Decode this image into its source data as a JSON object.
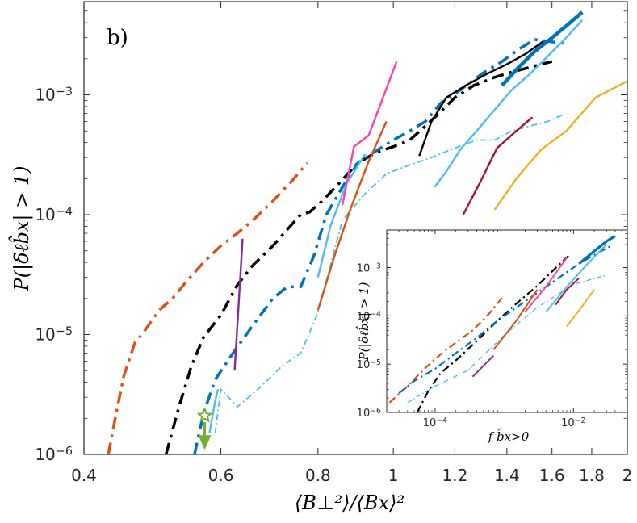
{
  "chart_data": [
    {
      "type": "line",
      "panel_label": "b)",
      "xlabel": "⟨B⊥²⟩/⟨Bx⟩²",
      "ylabel": "P(|δℓb̂x| > 1)",
      "xscale": "log",
      "yscale": "log",
      "xlim": [
        0.4,
        2.0
      ],
      "ylim": [
        1e-06,
        0.006
      ],
      "xticks": [
        0.4,
        0.6,
        0.8,
        1.0,
        1.2,
        1.4,
        1.6,
        1.8,
        2.0
      ],
      "xtick_labels": [
        "0.4",
        "0.6",
        "0.8",
        "1",
        "1.2",
        "1.4",
        "1.6",
        "1.8",
        "2"
      ],
      "yticks": [
        1e-06,
        1e-05,
        0.0001,
        0.001
      ],
      "ytick_labels": [
        "10-6",
        "10-5",
        "10-4",
        "10-3"
      ],
      "series": [
        {
          "name": "orange-dashdot",
          "color": "#D95319",
          "style": "dashdot",
          "width": 3.5,
          "x": [
            0.43,
            0.44,
            0.45,
            0.465,
            0.48,
            0.5,
            0.52,
            0.54,
            0.57,
            0.6,
            0.63,
            0.66,
            0.7,
            0.74,
            0.775
          ],
          "y": [
            1e-06,
            2.2e-06,
            4.5e-06,
            8.5e-06,
            1.1e-05,
            1.6e-05,
            2e-05,
            2.7e-05,
            4e-05,
            5.5e-05,
            7e-05,
            9e-05,
            0.00013,
            0.00019,
            0.00027
          ]
        },
        {
          "name": "black-dashdot",
          "color": "#000000",
          "style": "dashdot",
          "width": 3.5,
          "x": [
            0.51,
            0.53,
            0.55,
            0.57,
            0.6,
            0.63,
            0.66,
            0.7,
            0.73,
            0.76,
            0.78,
            0.81,
            0.85,
            0.9,
            0.95,
            1.0,
            1.05,
            1.1,
            1.15,
            1.2,
            1.27,
            1.35,
            1.42,
            1.5,
            1.55,
            1.6
          ],
          "y": [
            1e-06,
            2.5e-06,
            5.5e-06,
            9.5e-06,
            1.45e-05,
            2.6e-05,
            3.8e-05,
            5.5e-05,
            7.5e-05,
            0.0001,
            0.000105,
            0.00013,
            0.00018,
            0.00027,
            0.00033,
            0.00037,
            0.00042,
            0.00055,
            0.00072,
            0.00095,
            0.0012,
            0.0014,
            0.00155,
            0.0017,
            0.0018,
            0.0019
          ]
        },
        {
          "name": "blue-dashdot",
          "color": "#0072BD",
          "style": "dashdot",
          "width": 3.5,
          "x": [
            0.555,
            0.57,
            0.59,
            0.62,
            0.66,
            0.7,
            0.73,
            0.76,
            0.79,
            0.82,
            0.86,
            0.9,
            0.95,
            1.0,
            1.05,
            1.1,
            1.15,
            1.22,
            1.3,
            1.38,
            1.45,
            1.52,
            1.58,
            1.65,
            1.68
          ],
          "y": [
            1e-06,
            2.2e-06,
            4.2e-06,
            6.8e-06,
            1.2e-05,
            2e-05,
            2.5e-05,
            2.5e-05,
            4.5e-05,
            0.0001,
            0.00017,
            0.00027,
            0.00034,
            0.00042,
            0.0005,
            0.0006,
            0.00085,
            0.0011,
            0.0015,
            0.0019,
            0.0024,
            0.0029,
            0.0028,
            0.0027,
            0.0027
          ]
        },
        {
          "name": "lightblue-thin-dashdot",
          "color": "#4DBEEE",
          "style": "dashdot",
          "width": 1.8,
          "x": [
            0.59,
            0.6,
            0.63,
            0.67,
            0.72,
            0.76,
            0.79,
            0.8,
            0.82,
            0.86,
            0.92,
            0.98,
            1.05,
            1.12,
            1.2,
            1.28,
            1.35,
            1.42,
            1.5,
            1.58,
            1.65
          ],
          "y": [
            1.5e-06,
            3.5e-06,
            2.5e-06,
            3.5e-06,
            5.5e-06,
            7e-06,
            1.25e-05,
            1.55e-05,
            2.8e-05,
            9e-05,
            0.00015,
            0.00022,
            0.00026,
            0.0003,
            0.00036,
            0.00042,
            0.00042,
            0.0005,
            0.00055,
            0.0006,
            0.00068
          ]
        },
        {
          "name": "lightblue-solid-2",
          "color": "#4DBEEE",
          "style": "solid",
          "width": 2.4,
          "x": [
            0.58,
            0.59,
            0.595
          ],
          "y": [
            1.5e-06,
            2.8e-06,
            3.5e-06
          ]
        },
        {
          "name": "purple",
          "color": "#7E2F8E",
          "style": "solid",
          "width": 2.4,
          "x": [
            0.625,
            0.64
          ],
          "y": [
            5e-06,
            6.3e-05
          ]
        },
        {
          "name": "lightblue-solid",
          "color": "#4DBEEE",
          "style": "solid",
          "width": 2.4,
          "x": [
            0.8,
            0.83,
            0.87,
            0.92
          ],
          "y": [
            3e-05,
            8e-05,
            0.00018,
            0.00032
          ]
        },
        {
          "name": "orange-solid",
          "color": "#D95319",
          "style": "solid",
          "width": 2.4,
          "x": [
            0.8,
            0.84,
            0.88,
            0.93,
            0.98
          ],
          "y": [
            1.6e-05,
            4.5e-05,
            0.00011,
            0.00028,
            0.0006
          ]
        },
        {
          "name": "magenta",
          "color": "#FF40B0",
          "style": "solid",
          "width": 2.4,
          "x": [
            0.86,
            0.89,
            0.93,
            0.97,
            1.01
          ],
          "y": [
            0.00012,
            0.00037,
            0.00046,
            0.00095,
            0.0019
          ]
        },
        {
          "name": "black-solid",
          "color": "#000000",
          "style": "solid",
          "width": 2.4,
          "x": [
            1.08,
            1.12,
            1.17,
            1.24,
            1.32,
            1.4,
            1.48,
            1.56
          ],
          "y": [
            0.00031,
            0.0006,
            0.00095,
            0.0012,
            0.0015,
            0.0018,
            0.0022,
            0.0028
          ]
        },
        {
          "name": "skyblue-solid",
          "color": "#4DBEEE",
          "style": "solid",
          "width": 2.4,
          "x": [
            1.13,
            1.17,
            1.22,
            1.28,
            1.35,
            1.42,
            1.5,
            1.58,
            1.66,
            1.75
          ],
          "y": [
            0.00017,
            0.00023,
            0.00035,
            0.0005,
            0.00075,
            0.0011,
            0.0015,
            0.0021,
            0.0029,
            0.0042
          ]
        },
        {
          "name": "blue-thick-solid",
          "color": "#0072BD",
          "style": "solid",
          "width": 4.5,
          "x": [
            1.38,
            1.45,
            1.52,
            1.6,
            1.68,
            1.75
          ],
          "y": [
            0.0012,
            0.0017,
            0.0023,
            0.003,
            0.0039,
            0.0049
          ]
        },
        {
          "name": "darkred",
          "color": "#A2142F",
          "style": "solid",
          "width": 2.4,
          "x": [
            1.23,
            1.29,
            1.36,
            1.44,
            1.51
          ],
          "y": [
            0.0001,
            0.00018,
            0.00036,
            0.0005,
            0.00065
          ]
        },
        {
          "name": "yellow",
          "color": "#EDB120",
          "style": "solid",
          "width": 2.4,
          "x": [
            1.35,
            1.44,
            1.55,
            1.67,
            1.82,
            2.0
          ],
          "y": [
            0.00011,
            0.0002,
            0.00035,
            0.0005,
            0.00095,
            0.0013
          ]
        }
      ],
      "annotations": [
        {
          "type": "star-upper-limit",
          "x": 0.572,
          "y": 2.1e-06,
          "arrow_to_y": 1.2e-06,
          "color": "#77AC30"
        }
      ]
    },
    {
      "type": "line",
      "inset": true,
      "xlabel": "f b̂x>0",
      "ylabel": "P(|δℓb̂x| > 1)",
      "xscale": "log",
      "yscale": "log",
      "xlim": [
        2e-05,
        0.06
      ],
      "ylim": [
        1e-06,
        0.006
      ],
      "xticks": [
        0.0001,
        0.01
      ],
      "xtick_labels": [
        "10-4",
        "10-2"
      ],
      "yticks": [
        1e-06,
        1e-05,
        0.0001,
        0.001
      ],
      "ytick_labels": [
        "10-6",
        "10-5",
        "10-4",
        "10-3"
      ],
      "series": [
        {
          "name": "orange-dashdot",
          "color": "#D95319",
          "style": "dashdot",
          "width": 2.2,
          "x": [
            2.2e-05,
            4e-05,
            7e-05,
            0.00012,
            0.0002,
            0.00035,
            0.0006,
            0.001
          ],
          "y": [
            1.6e-06,
            3.5e-06,
            8e-06,
            1.6e-05,
            2.8e-05,
            5e-05,
            0.00011,
            0.00027
          ]
        },
        {
          "name": "black-dashdot",
          "color": "#000000",
          "style": "dashdot",
          "width": 2.2,
          "x": [
            5.5e-05,
            8e-05,
            0.00012,
            0.0002,
            0.0004,
            0.0008,
            0.0015,
            0.003,
            0.006,
            0.009
          ],
          "y": [
            1e-06,
            2.8e-06,
            6.5e-06,
            1.2e-05,
            3e-05,
            8e-05,
            0.00018,
            0.00042,
            0.0011,
            0.0019
          ]
        },
        {
          "name": "blue-dashdot",
          "color": "#0072BD",
          "style": "dashdot",
          "width": 2.2,
          "x": [
            3e-05,
            5e-05,
            0.0001,
            0.0002,
            0.0004,
            0.0008,
            0.0016,
            0.003,
            0.006,
            0.012,
            0.025,
            0.035
          ],
          "y": [
            2.5e-06,
            4.5e-06,
            8e-06,
            1.7e-05,
            3.5e-05,
            8e-05,
            0.00016,
            0.0003,
            0.0006,
            0.0012,
            0.0022,
            0.0028
          ]
        },
        {
          "name": "lightblue-dashdot",
          "color": "#4DBEEE",
          "style": "dashdot",
          "width": 1.4,
          "x": [
            4e-05,
            0.0001,
            0.0003,
            0.001,
            0.003,
            0.01,
            0.03
          ],
          "y": [
            1.6e-06,
            3.5e-06,
            7.5e-06,
            4e-05,
            0.00015,
            0.00045,
            0.0007
          ]
        },
        {
          "name": "purple",
          "color": "#7E2F8E",
          "style": "solid",
          "width": 2,
          "x": [
            0.00035,
            0.0007
          ],
          "y": [
            5.5e-06,
            1.5e-05
          ]
        },
        {
          "name": "orange-solid",
          "color": "#D95319",
          "style": "solid",
          "width": 2,
          "x": [
            0.0007,
            0.0015,
            0.003
          ],
          "y": [
            2e-05,
            8e-05,
            0.00035
          ]
        },
        {
          "name": "magenta",
          "color": "#FF40B0",
          "style": "solid",
          "width": 2,
          "x": [
            0.002,
            0.004,
            0.008
          ],
          "y": [
            0.00012,
            0.0004,
            0.0016
          ]
        },
        {
          "name": "darkred",
          "color": "#A2142F",
          "style": "solid",
          "width": 2,
          "x": [
            0.0055,
            0.008,
            0.012
          ],
          "y": [
            0.00017,
            0.00035,
            0.0006
          ]
        },
        {
          "name": "yellow",
          "color": "#EDB120",
          "style": "solid",
          "width": 2,
          "x": [
            0.008,
            0.013,
            0.02
          ],
          "y": [
            6e-05,
            0.00015,
            0.00035
          ]
        },
        {
          "name": "skyblue-solid",
          "color": "#4DBEEE",
          "style": "solid",
          "width": 2,
          "x": [
            0.004,
            0.008,
            0.016,
            0.03
          ],
          "y": [
            0.00012,
            0.0004,
            0.0012,
            0.003
          ]
        },
        {
          "name": "blue-thick",
          "color": "#0072BD",
          "style": "solid",
          "width": 3.2,
          "x": [
            0.012,
            0.02,
            0.03,
            0.04
          ],
          "y": [
            0.0012,
            0.0022,
            0.0035,
            0.0045
          ]
        }
      ]
    }
  ]
}
